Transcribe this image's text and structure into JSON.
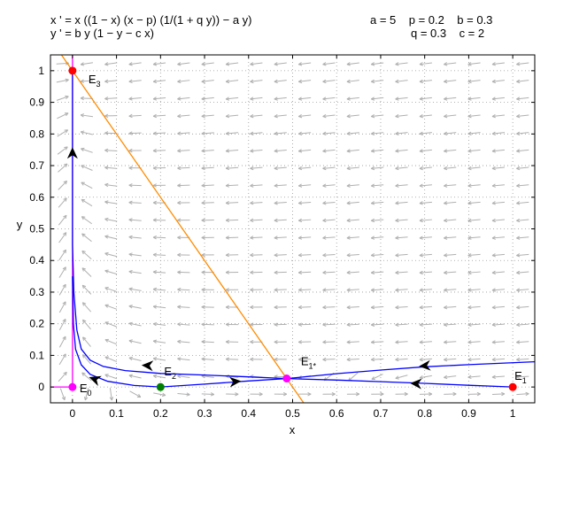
{
  "equations": {
    "line1": "x ' = x ((1 − x) (x − p) (1/(1 + q y)) − a y)",
    "line2": "y ' = b y (1 − y − c x)"
  },
  "parameters": {
    "row1": "a = 5    p = 0.2    b = 0.3",
    "row2": "q = 0.3    c = 2"
  },
  "chart_data": {
    "type": "line",
    "xlabel": "x",
    "ylabel": "y",
    "xlim": [
      -0.05,
      1.05
    ],
    "ylim": [
      -0.05,
      1.05
    ],
    "x_ticks": [
      "0",
      "0.1",
      "0.2",
      "0.3",
      "0.4",
      "0.5",
      "0.6",
      "0.7",
      "0.8",
      "0.9",
      "1"
    ],
    "y_ticks": [
      "0",
      "0.1",
      "0.2",
      "0.3",
      "0.4",
      "0.5",
      "0.6",
      "0.7",
      "0.8",
      "0.9",
      "1"
    ],
    "grid": true,
    "params": {
      "a": 5,
      "p": 0.2,
      "b": 0.3,
      "q": 0.3,
      "c": 2
    },
    "equilibria": [
      {
        "base": "E",
        "sub": "0",
        "x": 0,
        "y": 0,
        "color": "#ff00ff"
      },
      {
        "base": "E",
        "sub": "1",
        "x": 1,
        "y": 0,
        "color": "#ff0000"
      },
      {
        "base": "E",
        "sub": "2",
        "x": 0.2,
        "y": 0,
        "color": "#008000"
      },
      {
        "base": "E",
        "sub": "1*",
        "x": 0.4866,
        "y": 0.0268,
        "color": "#ff00ff"
      },
      {
        "base": "E",
        "sub": "3",
        "x": 0,
        "y": 1,
        "color": "#ff0000"
      }
    ],
    "nullclines": [
      {
        "series": "y-nullcline",
        "color": "#ff8c00",
        "points": [
          [
            -0.025,
            1.05
          ],
          [
            0.525,
            -0.05
          ]
        ]
      },
      {
        "series": "x-nullcline",
        "color": "#ff00ff",
        "points": [
          [
            -0.05,
            0.0
          ],
          [
            0.0,
            0.0
          ],
          [
            0.0,
            1.05
          ]
        ]
      }
    ],
    "trajectories": [
      {
        "color": "#0000ff",
        "points": [
          [
            1.05,
            0.08
          ],
          [
            0.9,
            0.0705
          ],
          [
            0.8,
            0.064
          ],
          [
            0.7,
            0.0535
          ],
          [
            0.6,
            0.042
          ],
          [
            0.4866,
            0.0268
          ]
        ]
      },
      {
        "color": "#0000ff",
        "points": [
          [
            0.4866,
            0.0268
          ],
          [
            0.4,
            0.032
          ],
          [
            0.3,
            0.038
          ],
          [
            0.2,
            0.043
          ],
          [
            0.12,
            0.052
          ],
          [
            0.07,
            0.065
          ],
          [
            0.04,
            0.085
          ],
          [
            0.02,
            0.12
          ],
          [
            0.01,
            0.18
          ],
          [
            0.003,
            0.3
          ],
          [
            0.0,
            0.45
          ],
          [
            0.0,
            0.7
          ],
          [
            0.0,
            1.0
          ]
        ]
      },
      {
        "color": "#0000ff",
        "points": [
          [
            0.2,
            0.0
          ],
          [
            0.14,
            0.005
          ],
          [
            0.08,
            0.018
          ],
          [
            0.04,
            0.04
          ],
          [
            0.02,
            0.07
          ],
          [
            0.007,
            0.12
          ],
          [
            0.002,
            0.2
          ],
          [
            0.0,
            0.35
          ]
        ]
      },
      {
        "color": "#0000ff",
        "points": [
          [
            0.2,
            0.0
          ],
          [
            0.3,
            0.009
          ],
          [
            0.4,
            0.019
          ],
          [
            0.4866,
            0.0268
          ]
        ]
      },
      {
        "color": "#0000ff",
        "points": [
          [
            1.0,
            0.0
          ],
          [
            0.9,
            0.0055
          ],
          [
            0.8,
            0.0115
          ],
          [
            0.7,
            0.017
          ],
          [
            0.6,
            0.022
          ],
          [
            0.4866,
            0.0268
          ]
        ]
      }
    ],
    "arrows": [
      {
        "x": 0.0,
        "y": 0.74,
        "dir": [
          0,
          1
        ]
      },
      {
        "x": 0.17,
        "y": 0.068,
        "dir": [
          -1,
          0.06
        ]
      },
      {
        "x": 0.8,
        "y": 0.067,
        "dir": [
          -1,
          -0.08
        ]
      },
      {
        "x": 0.05,
        "y": 0.025,
        "dir": [
          -1,
          0.35
        ]
      },
      {
        "x": 0.37,
        "y": 0.017,
        "dir": [
          1,
          0.08
        ]
      },
      {
        "x": 0.78,
        "y": 0.011,
        "dir": [
          -1,
          0.06
        ]
      }
    ]
  }
}
